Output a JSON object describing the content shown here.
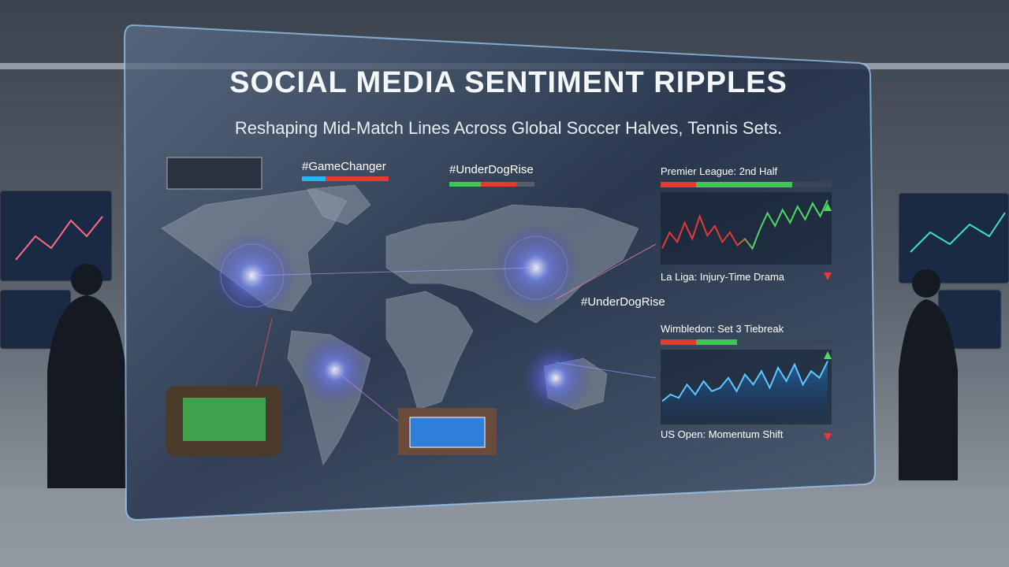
{
  "header": {
    "title": "SOCIAL MEDIA SENTIMENT RIPPLES",
    "subtitle": "Reshaping Mid-Match Lines Across Global Soccer Halves, Tennis Sets."
  },
  "hashtags": [
    "#GameChanger",
    "#UnderDogRise",
    "#UnderDogRise"
  ],
  "panels": [
    {
      "title": "Premier League: 2nd Half",
      "caption": "La Liga: Injury-Time Drama",
      "values": [
        20,
        45,
        30,
        60,
        35,
        70,
        40,
        55,
        30,
        45,
        25,
        35,
        20,
        50,
        75,
        55,
        80,
        60,
        85,
        65,
        90,
        70,
        95
      ]
    },
    {
      "title": "Wimbledon: Set 3 Tiebreak",
      "caption": "US Open: Momentum Shift",
      "values": [
        30,
        40,
        35,
        55,
        40,
        60,
        45,
        50,
        65,
        45,
        70,
        55,
        75,
        50,
        80,
        60,
        85,
        55,
        75,
        65,
        90
      ]
    }
  ]
}
